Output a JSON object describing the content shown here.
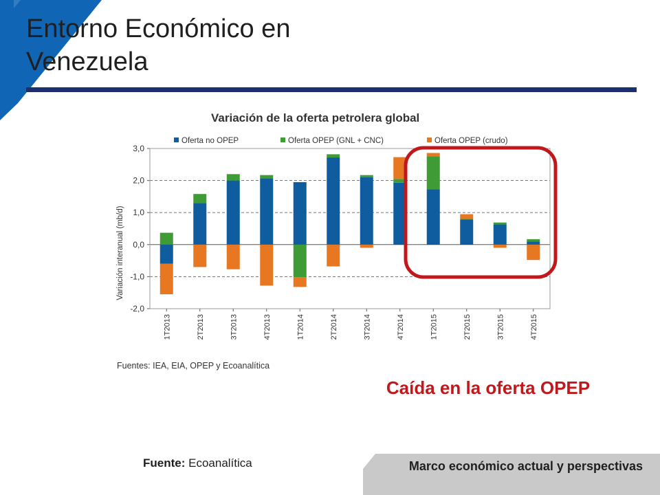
{
  "slide": {
    "title": "Entorno Económico en Venezuela",
    "annotation": "Caída en la oferta OPEP",
    "footer_source_label": "Fuente:",
    "footer_source_value": "Ecoanalítica",
    "footer_text": "Marco económico actual y perspectivas"
  },
  "colors": {
    "accent_blue": "#1066b5",
    "title_rule": "#1b2f6e",
    "highlight_red": "#c0181d",
    "footer_gray": "#c9c9c9"
  },
  "chart_data": {
    "type": "bar",
    "stacked": true,
    "title": "Variación de la oferta petrolera global",
    "ylabel": "Variación interanual (mb/d)",
    "xlabel": "",
    "ylim": [
      -2.0,
      3.0
    ],
    "yticks": [
      "3,0",
      "2,0",
      "1,0",
      "0,0",
      "-1,0",
      "-2,0"
    ],
    "grid": true,
    "legend_position": "top",
    "source": "Fuentes: IEA, EIA, OPEP y Ecoanalítica",
    "categories": [
      "1T2013",
      "2T2013",
      "3T2013",
      "4T2013",
      "1T2014",
      "2T2014",
      "3T2014",
      "4T2014",
      "1T2015",
      "2T2015",
      "3T2015",
      "4T2015"
    ],
    "series": [
      {
        "name": "Oferta no OPEP",
        "color": "#0f5c9e",
        "values": [
          -0.6,
          1.3,
          2.0,
          2.07,
          1.95,
          2.72,
          2.1,
          1.93,
          1.73,
          0.78,
          0.63,
          0.1
        ]
      },
      {
        "name": "Oferta OPEP (GNL + CNC)",
        "color": "#3f9b35",
        "values": [
          0.37,
          0.28,
          0.2,
          0.1,
          -1.02,
          0.1,
          0.07,
          0.12,
          1.03,
          0.02,
          0.06,
          0.07
        ]
      },
      {
        "name": "Oferta OPEP (crudo)",
        "color": "#e87722",
        "values": [
          -0.95,
          -0.7,
          -0.77,
          -1.28,
          -0.3,
          -0.68,
          -0.1,
          0.68,
          0.1,
          0.15,
          -0.1,
          -0.48
        ]
      }
    ],
    "highlight": {
      "from": "1T2015",
      "to": "4T2015",
      "label": "Caída en la oferta OPEP"
    }
  }
}
